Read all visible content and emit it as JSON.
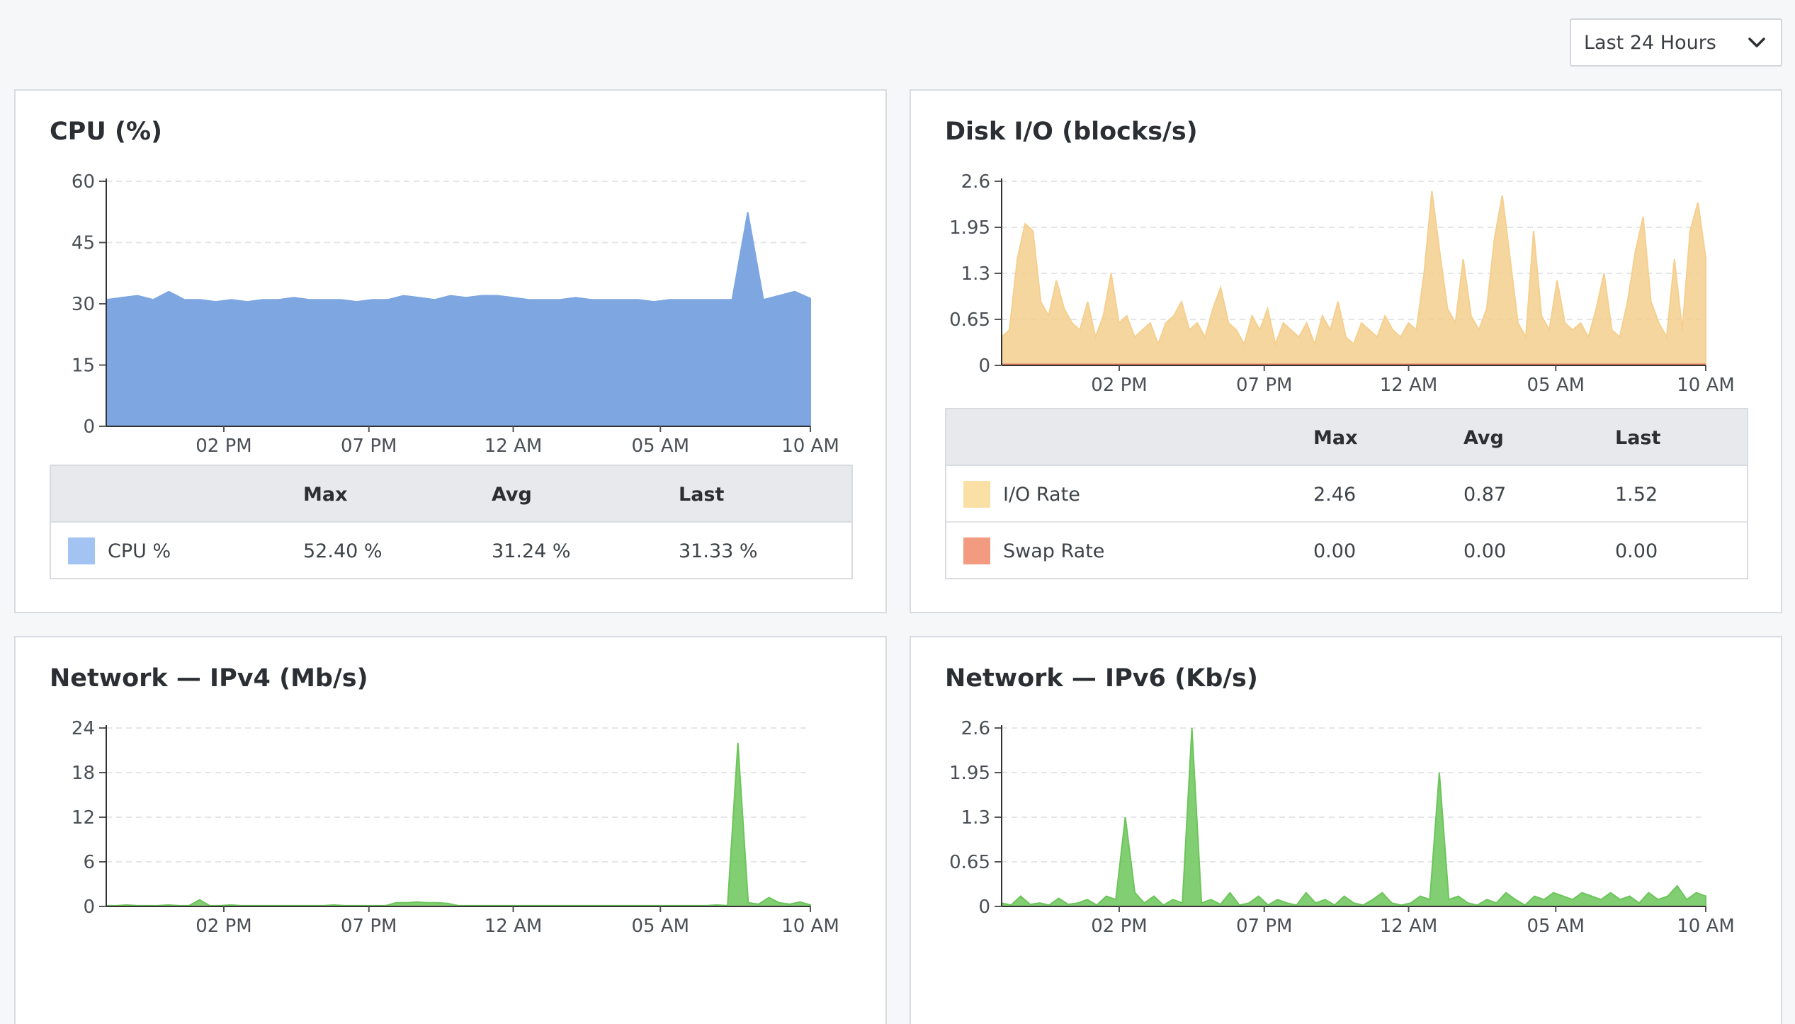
{
  "time_range": {
    "selected": "Last 24 Hours",
    "icon": "chevron-down-icon"
  },
  "panels": {
    "cpu": {
      "title": "CPU (%)",
      "legend": {
        "headers": [
          "Max",
          "Avg",
          "Last"
        ],
        "rows": [
          {
            "name": "CPU %",
            "color": "#a3c3f3",
            "max": "52.40 %",
            "avg": "31.24 %",
            "last": "31.33 %"
          }
        ]
      }
    },
    "disk": {
      "title": "Disk I/O (blocks/s)",
      "legend": {
        "headers": [
          "Max",
          "Avg",
          "Last"
        ],
        "rows": [
          {
            "name": "I/O Rate",
            "color": "#fbe0a6",
            "max": "2.46",
            "avg": "0.87",
            "last": "1.52"
          },
          {
            "name": "Swap Rate",
            "color": "#f29b80",
            "max": "0.00",
            "avg": "0.00",
            "last": "0.00"
          }
        ]
      }
    },
    "ipv4": {
      "title": "Network — IPv4 (Mb/s)"
    },
    "ipv6": {
      "title": "Network — IPv6 (Kb/s)"
    }
  },
  "chart_data": [
    {
      "type": "area",
      "title": "CPU (%)",
      "xlabel": "",
      "ylabel": "",
      "x_ticks": [
        "02 PM",
        "07 PM",
        "12 AM",
        "05 AM",
        "10 AM"
      ],
      "y_ticks": [
        "0",
        "15",
        "30",
        "45",
        "60"
      ],
      "ylim": [
        0,
        60
      ],
      "grid": true,
      "color": "#7ea6e0",
      "series": [
        {
          "name": "CPU %",
          "values": [
            31,
            31.5,
            32,
            31,
            33,
            31,
            31,
            30.5,
            31,
            30.5,
            31,
            31,
            31.5,
            31,
            31,
            31,
            30.5,
            31,
            31,
            32,
            31.5,
            31,
            32,
            31.5,
            32,
            32,
            31.5,
            31,
            31,
            31,
            31.5,
            31,
            31,
            31,
            31,
            30.5,
            31,
            31,
            31,
            31,
            31,
            52.4,
            31,
            32,
            33,
            31.3
          ]
        }
      ]
    },
    {
      "type": "area",
      "title": "Disk I/O (blocks/s)",
      "x_ticks": [
        "02 PM",
        "07 PM",
        "12 AM",
        "05 AM",
        "10 AM"
      ],
      "y_ticks": [
        "0",
        "0.65",
        "1.3",
        "1.95",
        "2.6"
      ],
      "ylim": [
        0,
        2.6
      ],
      "grid": true,
      "series": [
        {
          "name": "I/O Rate",
          "color": "#f5cf8e",
          "values": [
            0.4,
            0.5,
            1.5,
            2.0,
            1.9,
            0.9,
            0.7,
            1.2,
            0.8,
            0.6,
            0.5,
            0.9,
            0.4,
            0.7,
            1.3,
            0.6,
            0.7,
            0.4,
            0.5,
            0.6,
            0.3,
            0.6,
            0.7,
            0.9,
            0.5,
            0.6,
            0.4,
            0.8,
            1.1,
            0.6,
            0.5,
            0.3,
            0.7,
            0.5,
            0.8,
            0.3,
            0.6,
            0.5,
            0.4,
            0.6,
            0.3,
            0.7,
            0.5,
            0.9,
            0.4,
            0.3,
            0.6,
            0.5,
            0.4,
            0.7,
            0.5,
            0.4,
            0.6,
            0.5,
            1.3,
            2.46,
            1.6,
            0.8,
            0.6,
            1.5,
            0.7,
            0.5,
            0.8,
            1.8,
            2.4,
            1.5,
            0.6,
            0.4,
            1.9,
            0.7,
            0.5,
            1.2,
            0.6,
            0.5,
            0.6,
            0.4,
            0.8,
            1.3,
            0.5,
            0.4,
            0.9,
            1.6,
            2.1,
            0.9,
            0.6,
            0.4,
            1.5,
            0.5,
            1.9,
            2.3,
            1.52
          ]
        },
        {
          "name": "Swap Rate",
          "color": "#e07a5f",
          "values": [
            0,
            0,
            0,
            0,
            0
          ]
        }
      ]
    },
    {
      "type": "area",
      "title": "Network — IPv4 (Mb/s)",
      "x_ticks": [
        "02 PM",
        "07 PM",
        "12 AM",
        "05 AM",
        "10 AM"
      ],
      "y_ticks": [
        "0",
        "6",
        "12",
        "18",
        "24"
      ],
      "ylim": [
        0,
        24
      ],
      "grid": true,
      "color": "#6cc55b",
      "series": [
        {
          "name": "IPv4",
          "values": [
            0.1,
            0.1,
            0.2,
            0.1,
            0.1,
            0.1,
            0.2,
            0.1,
            0.1,
            0.9,
            0.1,
            0.1,
            0.2,
            0.1,
            0.1,
            0.1,
            0.1,
            0.1,
            0.1,
            0.1,
            0.1,
            0.1,
            0.2,
            0.1,
            0.1,
            0.1,
            0.1,
            0.1,
            0.5,
            0.5,
            0.6,
            0.5,
            0.5,
            0.4,
            0.1,
            0.1,
            0.1,
            0.1,
            0.1,
            0.1,
            0.1,
            0.1,
            0.1,
            0.1,
            0.1,
            0.1,
            0.1,
            0.1,
            0.1,
            0.1,
            0.1,
            0.1,
            0.1,
            0.1,
            0.1,
            0.1,
            0.1,
            0.1,
            0.1,
            0.2,
            0.1,
            22,
            0.5,
            0.3,
            1.2,
            0.5,
            0.3,
            0.6,
            0.2
          ]
        }
      ]
    },
    {
      "type": "area",
      "title": "Network — IPv6 (Kb/s)",
      "x_ticks": [
        "02 PM",
        "07 PM",
        "12 AM",
        "05 AM",
        "10 AM"
      ],
      "y_ticks": [
        "0",
        "0.65",
        "1.3",
        "1.95",
        "2.6"
      ],
      "ylim": [
        0,
        2.6
      ],
      "grid": true,
      "color": "#6cc55b",
      "series": [
        {
          "name": "IPv6",
          "values": [
            0.05,
            0.02,
            0.15,
            0.03,
            0.05,
            0.02,
            0.12,
            0.03,
            0.05,
            0.1,
            0.02,
            0.15,
            0.1,
            1.3,
            0.2,
            0.05,
            0.15,
            0.02,
            0.1,
            0.05,
            2.6,
            0.05,
            0.1,
            0.03,
            0.2,
            0.02,
            0.05,
            0.15,
            0.02,
            0.1,
            0.05,
            0.02,
            0.2,
            0.05,
            0.1,
            0.02,
            0.15,
            0.05,
            0.02,
            0.1,
            0.2,
            0.05,
            0.02,
            0.05,
            0.15,
            0.1,
            1.95,
            0.1,
            0.15,
            0.05,
            0.02,
            0.1,
            0.05,
            0.2,
            0.1,
            0.02,
            0.15,
            0.1,
            0.2,
            0.15,
            0.1,
            0.2,
            0.15,
            0.1,
            0.2,
            0.1,
            0.15,
            0.05,
            0.2,
            0.1,
            0.15,
            0.3,
            0.1,
            0.2,
            0.15
          ]
        }
      ]
    }
  ]
}
